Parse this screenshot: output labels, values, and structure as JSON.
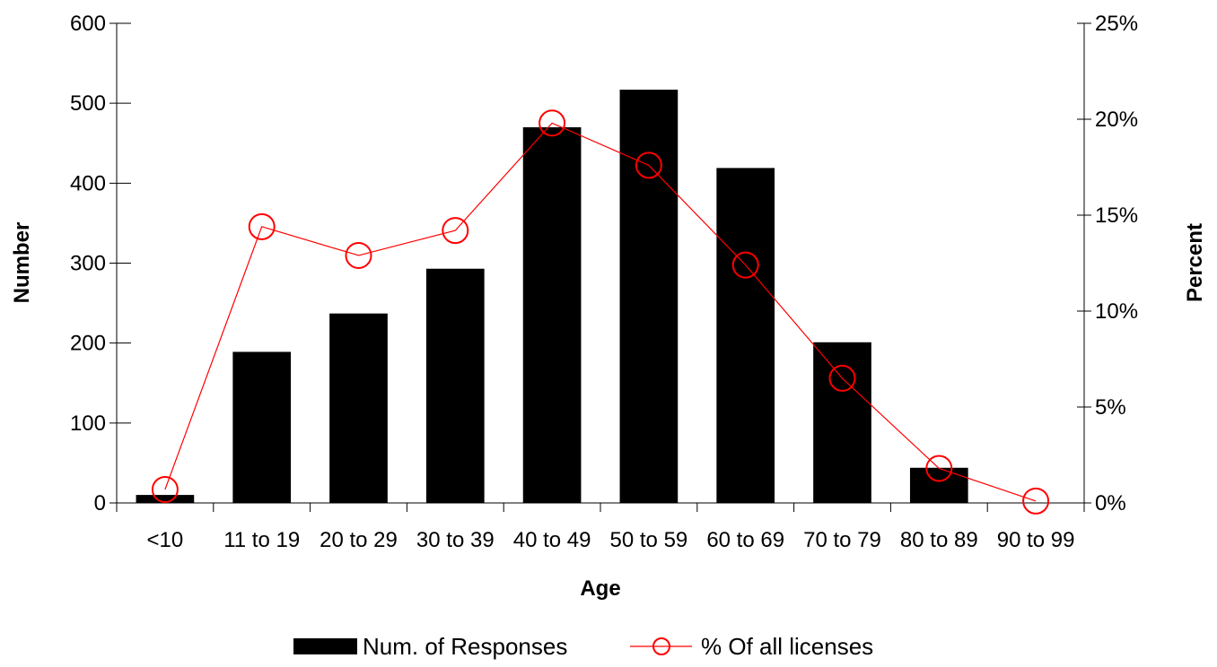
{
  "chart_data": {
    "type": "bar",
    "categories": [
      "<10",
      "11 to 19",
      "20 to 29",
      "30 to 39",
      "40 to 49",
      "50 to 59",
      "60 to 69",
      "70 to 79",
      "80 to 89",
      "90 to 99"
    ],
    "series": [
      {
        "name": "Num. of Responses",
        "type": "bar",
        "axis": "left",
        "color": "#000000",
        "values": [
          10,
          189,
          237,
          293,
          470,
          517,
          419,
          201,
          44,
          0
        ]
      },
      {
        "name": "% Of all licenses",
        "type": "line",
        "axis": "right",
        "color": "#ff0000",
        "marker": "open-circle",
        "values": [
          0.7,
          14.4,
          12.9,
          14.2,
          19.8,
          17.6,
          12.4,
          6.5,
          1.8,
          0.1
        ]
      }
    ],
    "xlabel": "Age",
    "ylabel": "Number",
    "y2label": "Percent",
    "ylim": [
      0,
      600
    ],
    "y2lim": [
      0,
      25
    ],
    "yticks": [
      "0",
      "100",
      "200",
      "300",
      "400",
      "500",
      "600"
    ],
    "y2ticks": [
      "0%",
      "5%",
      "10%",
      "15%",
      "20%",
      "25%"
    ],
    "grid": false,
    "legend": "bottom"
  }
}
